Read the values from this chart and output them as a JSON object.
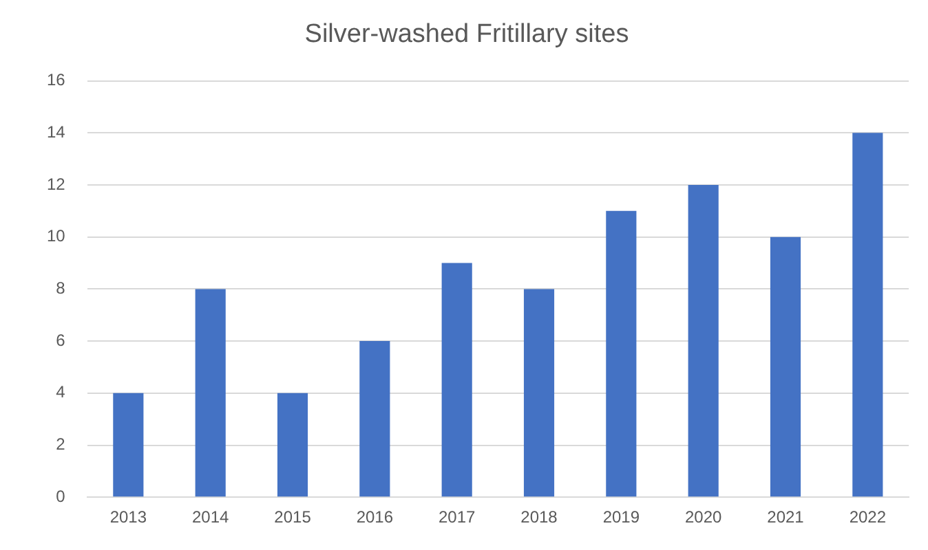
{
  "chart_data": {
    "type": "bar",
    "title": "Silver-washed Fritillary sites",
    "categories": [
      "2013",
      "2014",
      "2015",
      "2016",
      "2017",
      "2018",
      "2019",
      "2020",
      "2021",
      "2022"
    ],
    "values": [
      4,
      8,
      4,
      6,
      9,
      8,
      11,
      12,
      10,
      14
    ],
    "color": "#4472c4",
    "ylim": [
      0,
      16
    ],
    "yticks": [
      0,
      2,
      4,
      6,
      8,
      10,
      12,
      14,
      16
    ],
    "grid": "y",
    "legend": false
  }
}
